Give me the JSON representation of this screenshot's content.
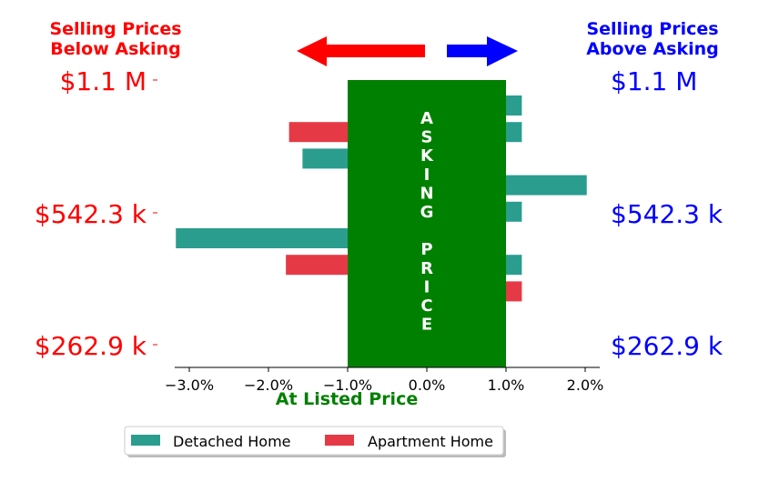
{
  "chart_data": {
    "type": "bar",
    "orientation": "horizontal",
    "title": "",
    "xlabel": "At Listed Price",
    "ylabel": "",
    "xlim": [
      -3.3,
      2.3
    ],
    "x_ticks": [
      -3.0,
      -2.0,
      -1.0,
      0.0,
      1.0,
      2.0
    ],
    "x_tick_labels": [
      "−3.0%",
      "−2.0%",
      "−1.0%",
      "0.0%",
      "1.0%",
      "2.0%"
    ],
    "grid": false,
    "legend_placement": "bottom",
    "left_header": [
      "Selling Prices",
      "Below Asking"
    ],
    "right_header": [
      "Selling Prices",
      "Above Asking"
    ],
    "price_labels": [
      "$1.1 M",
      "$542.3 k",
      "$262.9 k"
    ],
    "asking_band": {
      "from": -1.0,
      "to": 1.0,
      "label": "ASKING PRICE",
      "letters": [
        "A",
        "S",
        "K",
        "I",
        "N",
        "G",
        "",
        "P",
        "R",
        "I",
        "C",
        "E"
      ]
    },
    "series": [
      {
        "name": "Detached Home",
        "color": "#2a9d8f",
        "bars": [
          {
            "row": 0,
            "from": 1.0,
            "to": 1.2
          },
          {
            "row": 1,
            "from": 1.0,
            "to": 1.2
          },
          {
            "row": 2,
            "from": -1.57,
            "to": -1.0
          },
          {
            "row": 3,
            "from": 1.0,
            "to": 2.02
          },
          {
            "row": 4,
            "from": 1.0,
            "to": 1.2
          },
          {
            "row": 5,
            "from": -3.17,
            "to": -1.0
          },
          {
            "row": 6,
            "from": 1.0,
            "to": 1.2
          }
        ]
      },
      {
        "name": "Apartment Home",
        "color": "#e63946",
        "bars": [
          {
            "row": 1,
            "from": -1.74,
            "to": -1.0
          },
          {
            "row": 6,
            "from": -1.78,
            "to": -1.0
          },
          {
            "row": 7,
            "from": 1.0,
            "to": 1.2
          }
        ]
      }
    ]
  },
  "colors": {
    "below": "#ff0000",
    "above": "#0000ff",
    "band": "#008000",
    "axis_label": "#008000"
  }
}
